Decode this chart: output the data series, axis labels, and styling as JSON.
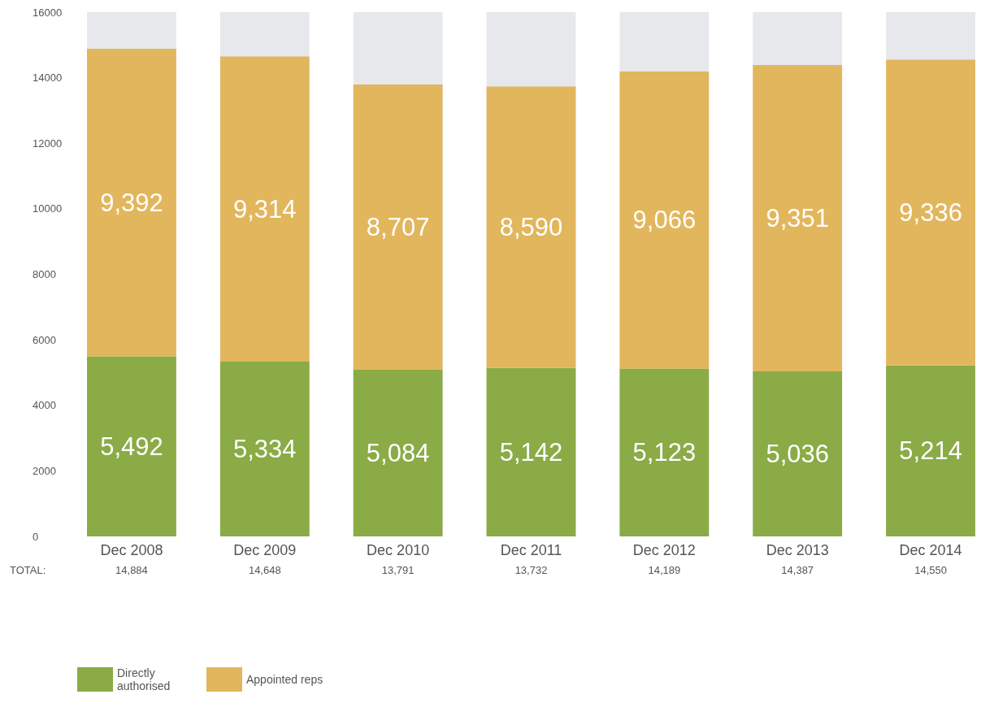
{
  "chart_data": {
    "type": "bar",
    "stacked": true,
    "categories": [
      "Dec 2008",
      "Dec 2009",
      "Dec 2010",
      "Dec 2011",
      "Dec 2012",
      "Dec 2013",
      "Dec 2014"
    ],
    "series": [
      {
        "name": "Directly authorised",
        "color": "#8aab45",
        "values": [
          5492,
          5334,
          5084,
          5142,
          5123,
          5036,
          5214
        ],
        "value_labels": [
          "5,492",
          "5,334",
          "5,084",
          "5,142",
          "5,123",
          "5,036",
          "5,214"
        ]
      },
      {
        "name": "Appointed reps",
        "color": "#e2b65c",
        "values": [
          9392,
          9314,
          8707,
          8590,
          9066,
          9351,
          9336
        ],
        "value_labels": [
          "9,392",
          "9,314",
          "8,707",
          "8,590",
          "9,066",
          "9,351",
          "9,336"
        ]
      }
    ],
    "totals": [
      "14,884",
      "14,648",
      "13,791",
      "13,732",
      "14,189",
      "14,387",
      "14,550"
    ],
    "annotations": [
      "TOTAL:"
    ],
    "ylim": [
      0,
      16000
    ],
    "yticks": [
      0,
      2000,
      4000,
      6000,
      8000,
      10000,
      12000,
      14000,
      16000
    ],
    "legend": "bottom left"
  }
}
